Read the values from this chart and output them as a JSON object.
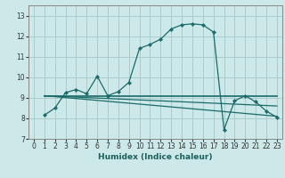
{
  "title": "",
  "xlabel": "Humidex (Indice chaleur)",
  "bg_color": "#cce8e8",
  "grid_color": "#aacccc",
  "line_color": "#1a6b6b",
  "xlim": [
    -0.5,
    23.5
  ],
  "ylim": [
    7.0,
    13.5
  ],
  "yticks": [
    7,
    8,
    9,
    10,
    11,
    12,
    13
  ],
  "xticks": [
    0,
    1,
    2,
    3,
    4,
    5,
    6,
    7,
    8,
    9,
    10,
    11,
    12,
    13,
    14,
    15,
    16,
    17,
    18,
    19,
    20,
    21,
    22,
    23
  ],
  "main_line": {
    "x": [
      1,
      2,
      3,
      4,
      5,
      6,
      7,
      8,
      9,
      10,
      11,
      12,
      13,
      14,
      15,
      16,
      17,
      18,
      19,
      20,
      21,
      22,
      23
    ],
    "y": [
      8.15,
      8.5,
      9.25,
      9.4,
      9.2,
      10.05,
      9.1,
      9.3,
      9.75,
      11.4,
      11.6,
      11.85,
      12.35,
      12.55,
      12.6,
      12.55,
      12.2,
      7.45,
      8.85,
      9.1,
      8.8,
      8.35,
      8.05
    ]
  },
  "flat_line": {
    "x": [
      1,
      23
    ],
    "y": [
      9.1,
      9.1
    ]
  },
  "decline_line1": {
    "x": [
      1,
      23
    ],
    "y": [
      9.1,
      8.6
    ]
  },
  "decline_line2": {
    "x": [
      1,
      23
    ],
    "y": [
      9.1,
      8.1
    ]
  }
}
